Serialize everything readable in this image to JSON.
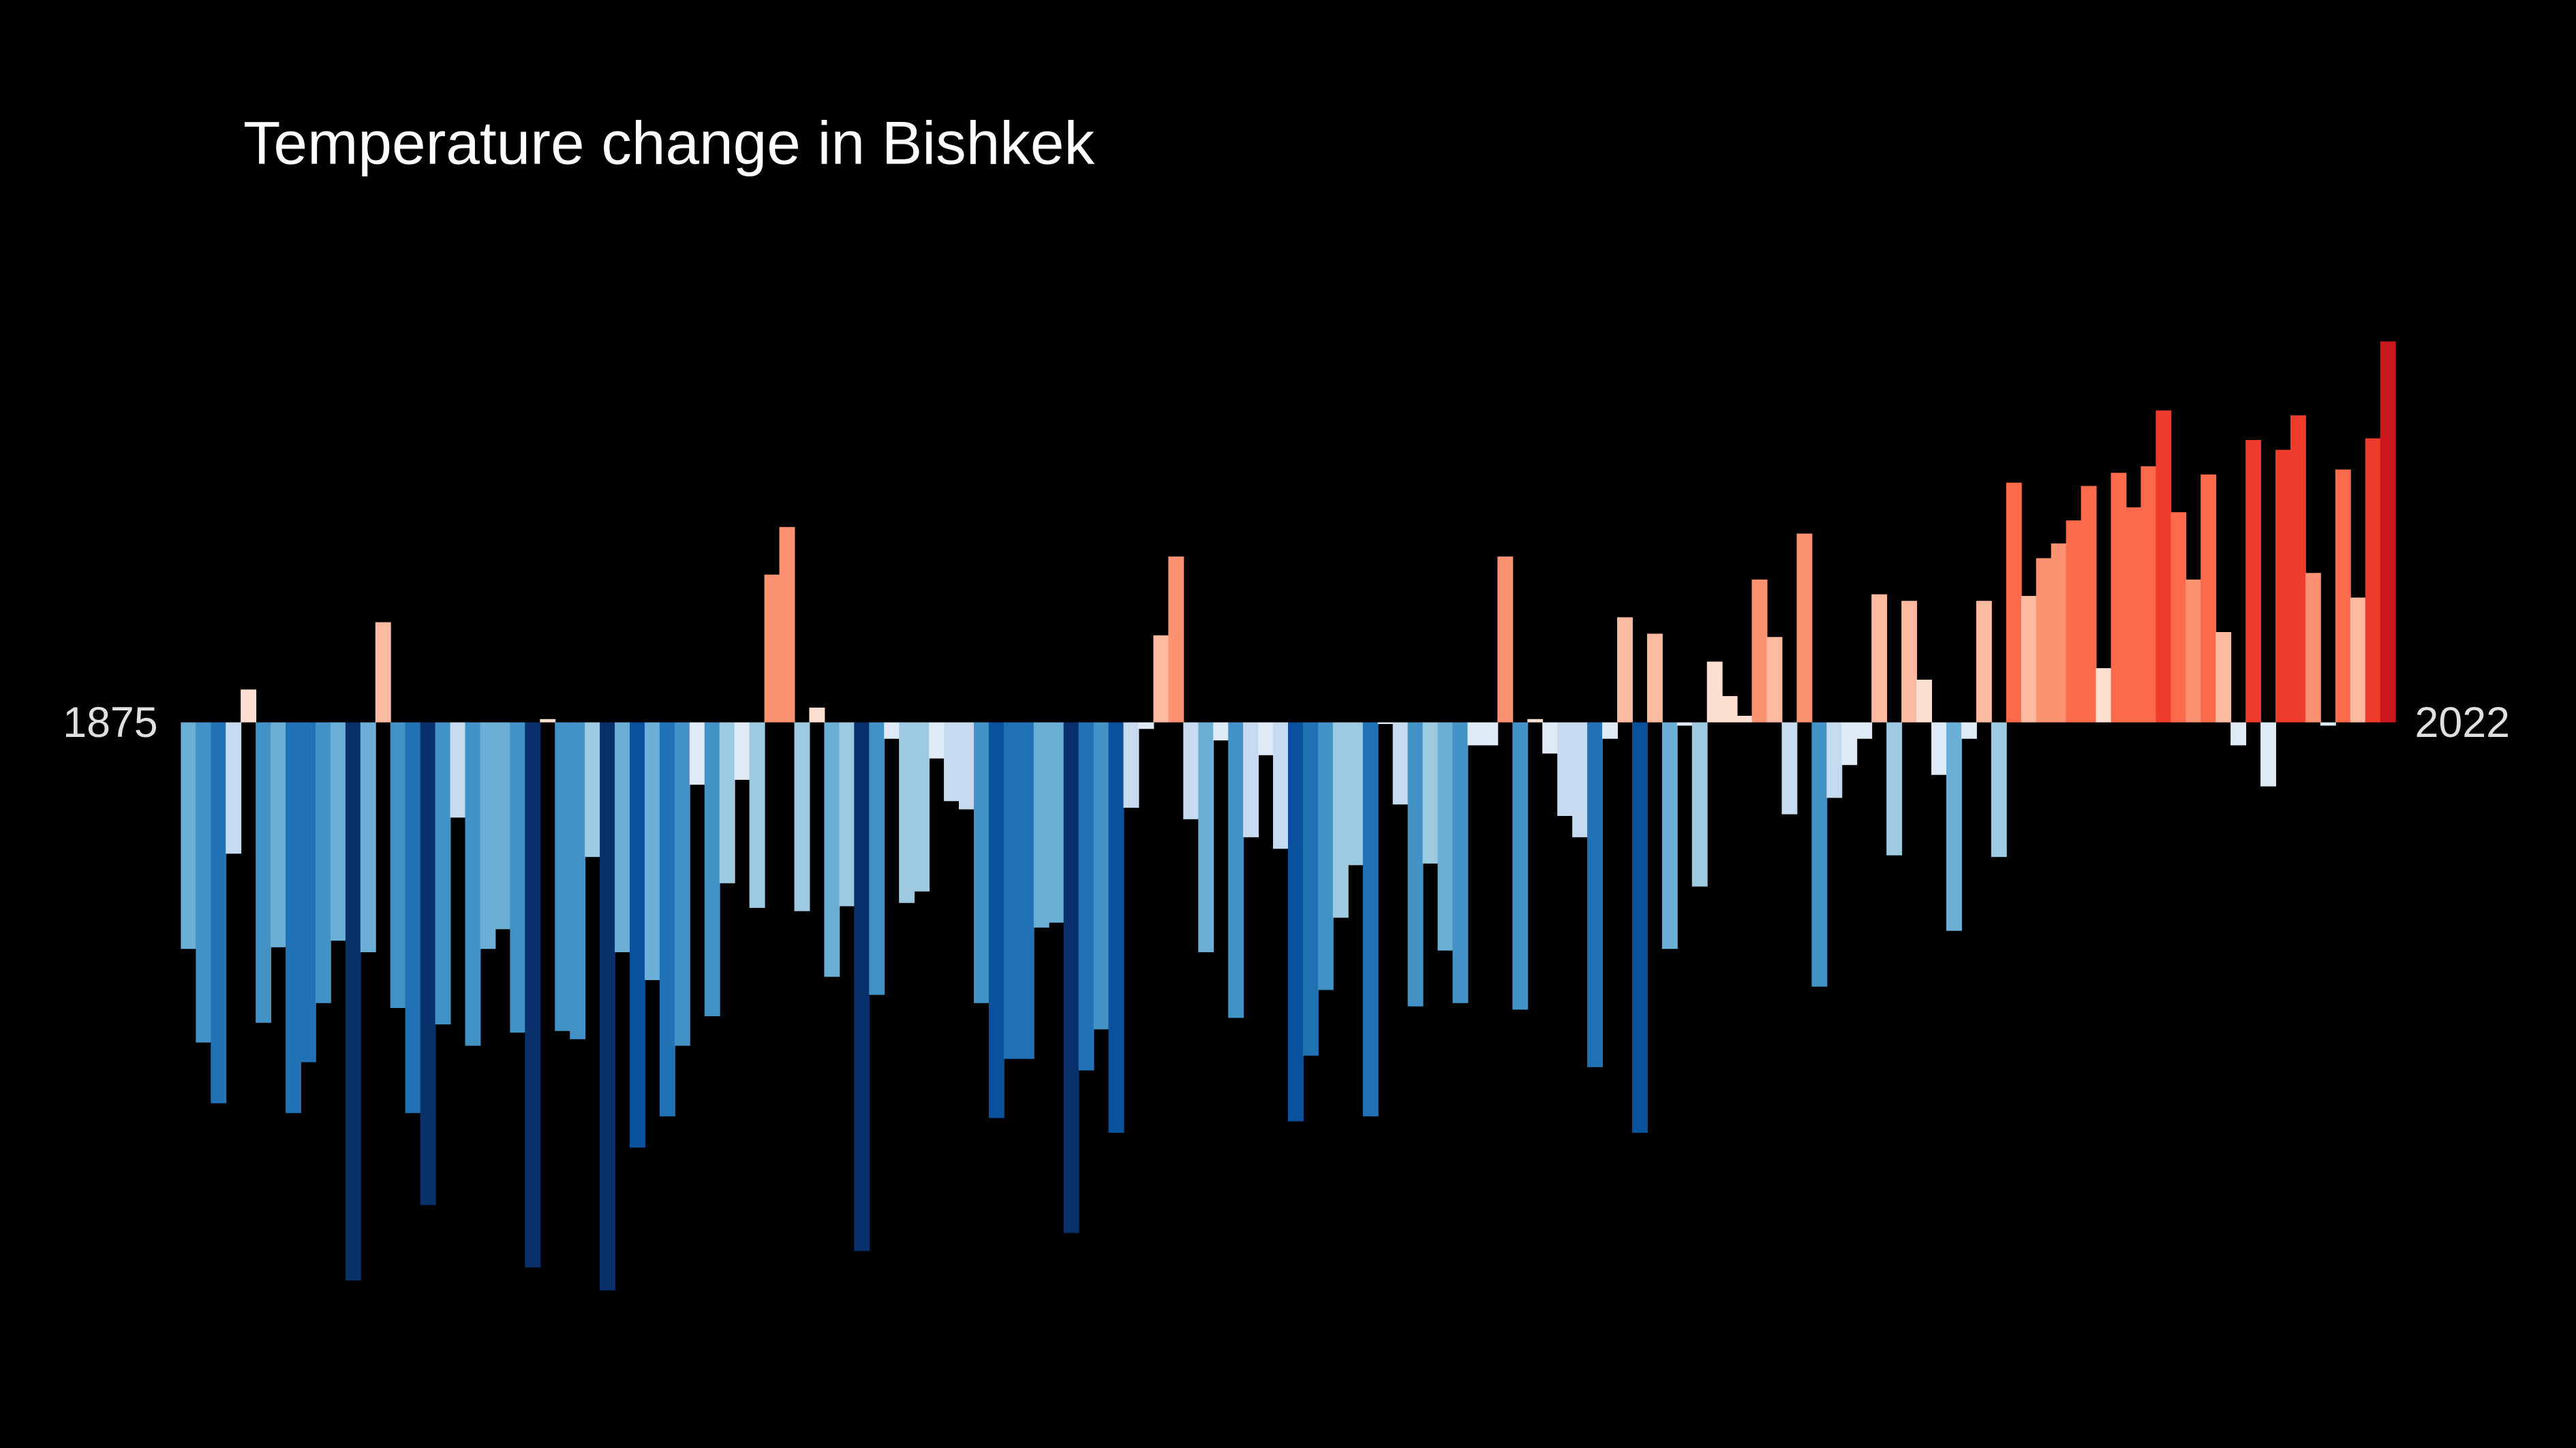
{
  "chart_data": {
    "type": "bar",
    "title": "Temperature change in Bishkek",
    "categories": [
      1875,
      null,
      null,
      null,
      null,
      null,
      null,
      null,
      null,
      null,
      null,
      null,
      null,
      null,
      null,
      null,
      null,
      null,
      null,
      null,
      null,
      null,
      null,
      null,
      null,
      null,
      null,
      null,
      null,
      null,
      null,
      null,
      null,
      null,
      null,
      null,
      null,
      null,
      null,
      null,
      null,
      null,
      null,
      null,
      null,
      null,
      null,
      null,
      null,
      null,
      null,
      null,
      null,
      null,
      null,
      null,
      null,
      null,
      null,
      null,
      null,
      null,
      null,
      null,
      null,
      null,
      null,
      null,
      null,
      null,
      null,
      null,
      null,
      null,
      null,
      null,
      null,
      null,
      null,
      null,
      null,
      null,
      null,
      null,
      null,
      null,
      null,
      null,
      null,
      null,
      null,
      null,
      null,
      null,
      null,
      null,
      null,
      null,
      null,
      null,
      null,
      null,
      null,
      null,
      null,
      null,
      null,
      null,
      null,
      null,
      null,
      null,
      null,
      null,
      null,
      null,
      null,
      null,
      null,
      null,
      null,
      null,
      null,
      null,
      null,
      null,
      null,
      null,
      null,
      null,
      null,
      null,
      null,
      null,
      null,
      null,
      null,
      null,
      null,
      null,
      null,
      null,
      null,
      null,
      null,
      null,
      null,
      2022
    ],
    "values": [
      -1.38,
      -1.95,
      -2.32,
      -0.8,
      0.2,
      -1.83,
      -1.37,
      -2.38,
      -2.07,
      -1.71,
      -1.33,
      -3.4,
      -1.4,
      0.61,
      -1.74,
      -2.38,
      -2.94,
      -1.84,
      -0.58,
      -1.97,
      -1.38,
      -1.26,
      -1.89,
      -3.32,
      0.02,
      -1.88,
      -1.93,
      -0.82,
      -3.46,
      -1.4,
      -2.59,
      -1.57,
      -2.4,
      -1.97,
      -0.38,
      -1.79,
      -0.98,
      -0.35,
      -1.13,
      0.9,
      1.19,
      -1.15,
      0.09,
      -1.55,
      -1.12,
      -3.22,
      -1.66,
      -0.1,
      -1.1,
      -1.03,
      -0.22,
      -0.48,
      -0.53,
      -1.71,
      -2.41,
      -2.05,
      -2.05,
      -1.25,
      -1.22,
      -3.11,
      -2.12,
      -1.87,
      -2.5,
      -0.52,
      -0.04,
      0.53,
      1.01,
      -0.59,
      -1.4,
      -0.11,
      -1.8,
      -0.7,
      -0.2,
      -0.77,
      -2.43,
      -2.03,
      -1.63,
      -1.19,
      -0.87,
      -2.4,
      -0.01,
      -0.5,
      -1.73,
      -0.86,
      -1.39,
      -1.71,
      -0.14,
      -0.14,
      1.01,
      -1.75,
      0.02,
      -0.19,
      -0.57,
      -0.7,
      -2.1,
      -0.1,
      0.64,
      -2.5,
      0.54,
      -1.38,
      -0.02,
      -1.0,
      0.37,
      0.16,
      0.04,
      0.87,
      0.52,
      -0.56,
      1.15,
      -1.61,
      -0.46,
      -0.26,
      -0.1,
      0.78,
      -0.81,
      0.74,
      0.26,
      -0.32,
      -1.27,
      -0.1,
      0.74,
      -0.82,
      1.46,
      0.77,
      1.0,
      1.09,
      1.23,
      1.44,
      0.33,
      1.52,
      1.31,
      1.56,
      1.9,
      1.28,
      0.87,
      1.51,
      0.55,
      -0.14,
      1.72,
      -0.39,
      1.66,
      1.87,
      0.91,
      -0.02,
      1.54,
      0.76,
      1.73,
      2.32
    ],
    "ylim": [
      -4.42,
      4.4
    ],
    "color_scale": [
      "#08306b",
      "#08519c",
      "#2171b5",
      "#4292c6",
      "#6baed6",
      "#9ecae1",
      "#c6dbef",
      "#deebf7",
      "#fee0d2",
      "#fcbba1",
      "#fc9272",
      "#fb6a4a",
      "#ef3b2c",
      "#cb181d",
      "#a50f15",
      "#67000d"
    ],
    "clim": [
      -3.2,
      3.2
    ]
  }
}
